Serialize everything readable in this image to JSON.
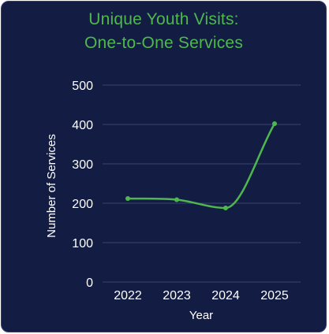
{
  "chart_data": {
    "type": "line",
    "title_line1": "Unique Youth Visits:",
    "title_line2": "One-to-One Services",
    "xlabel": "Year",
    "ylabel": "Number of Services",
    "categories": [
      "2022",
      "2023",
      "2024",
      "2025"
    ],
    "values": [
      212,
      209,
      188,
      402
    ],
    "ylim": [
      0,
      500
    ],
    "yticks": [
      "0",
      "100",
      "200",
      "300",
      "400",
      "500"
    ],
    "grid": true,
    "smooth": true,
    "colors": {
      "background": "#131d44",
      "line": "#4fb84d",
      "title": "#4fb84d",
      "grid": "#3b4470",
      "text": "#ffffff"
    }
  }
}
